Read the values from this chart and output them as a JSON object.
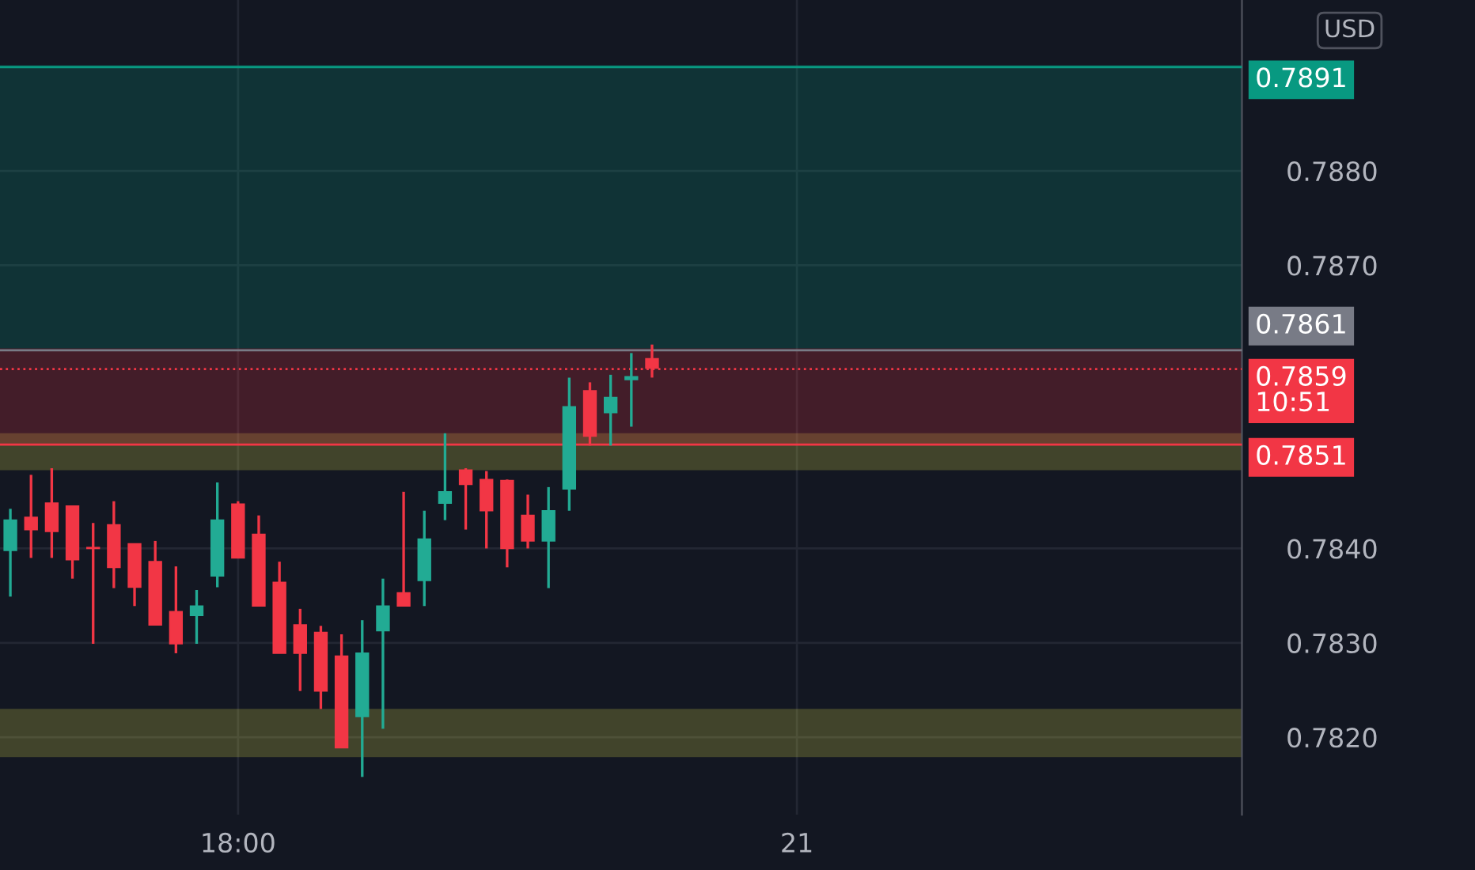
{
  "chart_data": {
    "type": "candlestick",
    "categories": [
      null,
      null,
      null,
      null,
      null,
      null,
      null,
      null,
      null,
      null,
      null,
      "18:00",
      null,
      null,
      null,
      null,
      null,
      null,
      null,
      null,
      null,
      null,
      null,
      null,
      null,
      null,
      null,
      null,
      null,
      null,
      null,
      null,
      null,
      null,
      null,
      null,
      null,
      null,
      "21",
      null,
      null,
      null,
      null,
      null,
      null,
      null,
      null,
      null,
      null,
      null,
      null,
      null,
      null,
      null,
      null,
      null,
      null,
      null,
      null,
      null
    ],
    "ohlc": [
      [
        0.78398,
        0.78442,
        0.78349,
        0.7843
      ],
      [
        0.78433,
        0.78478,
        0.7839,
        0.7842
      ],
      [
        0.78448,
        0.78485,
        0.7839,
        0.78418
      ],
      [
        0.78445,
        0.78445,
        0.78368,
        0.78388
      ],
      [
        0.78401,
        0.78427,
        0.78299,
        0.784
      ],
      [
        0.78425,
        0.7845,
        0.78358,
        0.7838
      ],
      [
        0.78405,
        0.78405,
        0.78339,
        0.78359
      ],
      [
        0.78386,
        0.78408,
        0.78319,
        0.78319
      ],
      [
        0.78333,
        0.78381,
        0.78289,
        0.78299
      ],
      [
        0.78329,
        0.78356,
        0.78299,
        0.78339
      ],
      [
        0.78371,
        0.7847,
        0.78359,
        0.7843
      ],
      [
        0.78447,
        0.7845,
        0.7839,
        0.7839
      ],
      [
        0.78415,
        0.78435,
        0.78339,
        0.78339
      ],
      [
        0.78364,
        0.78386,
        0.78289,
        0.78289
      ],
      [
        0.78319,
        0.78336,
        0.78249,
        0.78289
      ],
      [
        0.78311,
        0.78318,
        0.7823,
        0.78249
      ],
      [
        0.78286,
        0.78309,
        0.78189,
        0.78189
      ],
      [
        0.78222,
        0.78324,
        0.78158,
        0.78289
      ],
      [
        0.78313,
        0.78368,
        0.78209,
        0.78339
      ],
      [
        0.78353,
        0.7846,
        0.78339,
        0.78339
      ],
      [
        0.78366,
        0.7844,
        0.78339,
        0.7841
      ],
      [
        0.78448,
        0.78522,
        0.7843,
        0.7846
      ],
      [
        0.78483,
        0.78485,
        0.7842,
        0.78468
      ],
      [
        0.78473,
        0.78482,
        0.784,
        0.7844
      ],
      [
        0.78472,
        0.78473,
        0.7838,
        0.784
      ],
      [
        0.78435,
        0.78457,
        0.784,
        0.78408
      ],
      [
        0.78408,
        0.78465,
        0.78358,
        0.7844
      ],
      [
        0.78463,
        0.78581,
        0.7844,
        0.7855
      ],
      [
        0.78567,
        0.78576,
        0.78509,
        0.78519
      ],
      [
        0.78544,
        0.78584,
        0.78509,
        0.7856
      ],
      [
        0.78579,
        0.78607,
        0.78529,
        0.78582
      ],
      [
        0.78601,
        0.78616,
        0.78581,
        0.78591
      ],
      null,
      null,
      null,
      null,
      null,
      null,
      null,
      null,
      null,
      null,
      null,
      null,
      null,
      null,
      null,
      null,
      null,
      null,
      null,
      null,
      null,
      null,
      null,
      null,
      null,
      null,
      null,
      null
    ],
    "colors": [
      "#22ab94",
      "#f23645",
      "#f23645",
      "#f23645",
      "#f23645",
      "#f23645",
      "#f23645",
      "#f23645",
      "#f23645",
      "#22ab94",
      "#22ab94",
      "#f23645",
      "#f23645",
      "#f23645",
      "#f23645",
      "#f23645",
      "#f23645",
      "#22ab94",
      "#22ab94",
      "#f23645",
      "#22ab94",
      "#22ab94",
      "#f23645",
      "#f23645",
      "#f23645",
      "#f23645",
      "#22ab94",
      "#22ab94",
      "#f23645",
      "#22ab94",
      "#22ab94",
      "#f23645",
      null,
      null,
      null,
      null,
      null,
      null,
      null,
      null,
      null,
      null,
      null,
      null,
      null,
      null,
      null,
      null,
      null,
      null,
      null,
      null,
      null,
      null,
      null,
      null,
      null,
      null,
      null,
      null
    ],
    "ylim": [
      0.78118,
      0.78981
    ],
    "yticks": [
      {
        "value": 0.782,
        "label": "0.7820"
      },
      {
        "value": 0.783,
        "label": "0.7830"
      },
      {
        "value": 0.784,
        "label": "0.7840"
      },
      {
        "value": 0.787,
        "label": "0.7870"
      },
      {
        "value": 0.788,
        "label": "0.7880"
      }
    ],
    "grid": true,
    "bands": [
      {
        "axis": "y",
        "from": 0.78483,
        "to": 0.78522,
        "color": "#e6e64c"
      },
      {
        "axis": "y",
        "from": 0.78179,
        "to": 0.7823,
        "color": "#e6e64c"
      },
      {
        "axis": "y",
        "from": 0.78612,
        "to": 0.78912,
        "color": "#089981"
      },
      {
        "axis": "y",
        "from": 0.7851,
        "to": 0.78612,
        "color": "#f23645"
      }
    ],
    "ref_lines": [
      {
        "axis": "y",
        "value": 0.7891,
        "label": "0.7891",
        "color": "#089981",
        "line_style": "solid"
      },
      {
        "axis": "y",
        "value": 0.7861,
        "label": "0.7861",
        "color": "#787b86",
        "line_style": "solid"
      },
      {
        "axis": "y",
        "value": 0.7859,
        "label": "0.7859\n10:51",
        "color": "#f23645",
        "line_style": "dotted"
      },
      {
        "axis": "y",
        "value": 0.7851,
        "label": "0.7851",
        "color": "#f23645",
        "line_style": "solid"
      }
    ],
    "annotations": [
      "USD"
    ]
  }
}
